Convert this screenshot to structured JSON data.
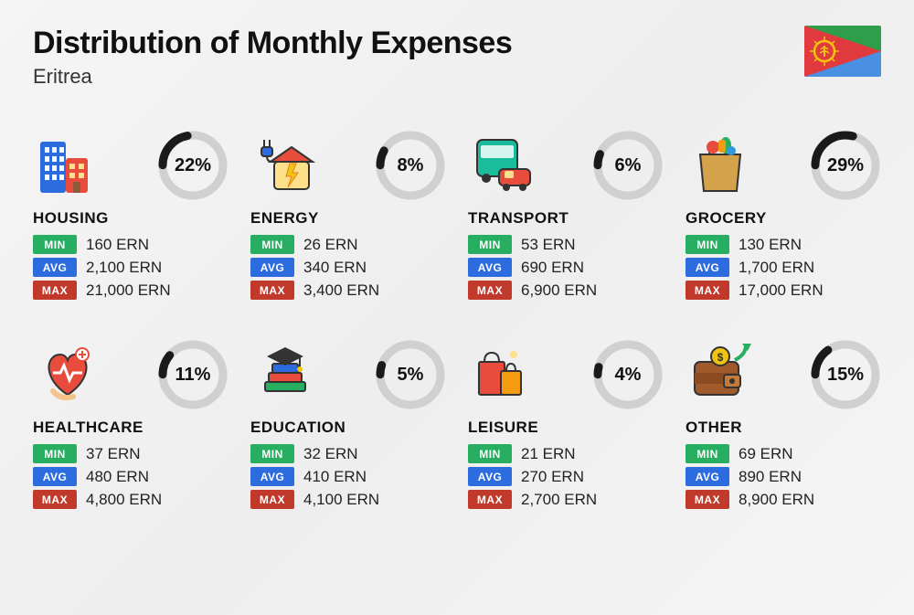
{
  "title": "Distribution of Monthly Expenses",
  "country": "Eritrea",
  "currency": "ERN",
  "flag": {
    "top": "#2e9e4a",
    "bottom": "#4a90e2",
    "triangle": "#e03a3e",
    "emblem": "#f1c40f"
  },
  "badges": {
    "min": "MIN",
    "avg": "AVG",
    "max": "MAX"
  },
  "badge_colors": {
    "min": "#27ae60",
    "avg": "#2d6cdf",
    "max": "#c0392b"
  },
  "ring": {
    "stroke": "#1a1a1a",
    "track": "#d0d0d0",
    "width": 9,
    "radius": 33,
    "label_fontsize": 20
  },
  "title_fontsize": 34,
  "subtitle_fontsize": 22,
  "catname_fontsize": 17,
  "value_fontsize": 17,
  "background": "#f2f2f2",
  "categories": [
    {
      "key": "housing",
      "name": "HOUSING",
      "percent": 22,
      "min": "160 ERN",
      "avg": "2,100 ERN",
      "max": "21,000 ERN",
      "icon": "buildings"
    },
    {
      "key": "energy",
      "name": "ENERGY",
      "percent": 8,
      "min": "26 ERN",
      "avg": "340 ERN",
      "max": "3,400 ERN",
      "icon": "energy"
    },
    {
      "key": "transport",
      "name": "TRANSPORT",
      "percent": 6,
      "min": "53 ERN",
      "avg": "690 ERN",
      "max": "6,900 ERN",
      "icon": "transport"
    },
    {
      "key": "grocery",
      "name": "GROCERY",
      "percent": 29,
      "min": "130 ERN",
      "avg": "1,700 ERN",
      "max": "17,000 ERN",
      "icon": "grocery"
    },
    {
      "key": "healthcare",
      "name": "HEALTHCARE",
      "percent": 11,
      "min": "37 ERN",
      "avg": "480 ERN",
      "max": "4,800 ERN",
      "icon": "healthcare"
    },
    {
      "key": "education",
      "name": "EDUCATION",
      "percent": 5,
      "min": "32 ERN",
      "avg": "410 ERN",
      "max": "4,100 ERN",
      "icon": "education"
    },
    {
      "key": "leisure",
      "name": "LEISURE",
      "percent": 4,
      "min": "21 ERN",
      "avg": "270 ERN",
      "max": "2,700 ERN",
      "icon": "leisure"
    },
    {
      "key": "other",
      "name": "OTHER",
      "percent": 15,
      "min": "69 ERN",
      "avg": "890 ERN",
      "max": "8,900 ERN",
      "icon": "wallet"
    }
  ]
}
